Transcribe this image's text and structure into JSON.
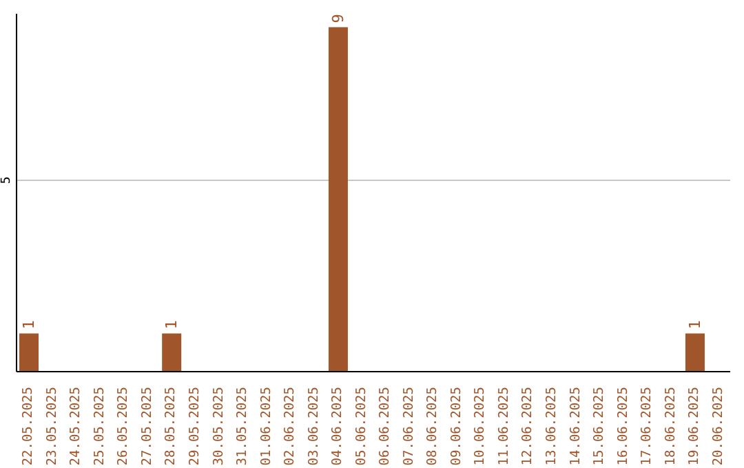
{
  "chart_data": {
    "type": "bar",
    "categories": [
      "22.05.2025",
      "23.05.2025",
      "24.05.2025",
      "25.05.2025",
      "26.05.2025",
      "27.05.2025",
      "28.05.2025",
      "29.05.2025",
      "30.05.2025",
      "31.05.2025",
      "01.06.2025",
      "02.06.2025",
      "03.06.2025",
      "04.06.2025",
      "05.06.2025",
      "06.06.2025",
      "07.06.2025",
      "08.06.2025",
      "09.06.2025",
      "10.06.2025",
      "11.06.2025",
      "12.06.2025",
      "13.06.2025",
      "14.06.2025",
      "15.06.2025",
      "16.06.2025",
      "17.06.2025",
      "18.06.2025",
      "19.06.2025",
      "20.06.2025"
    ],
    "values": [
      1,
      0,
      0,
      0,
      0,
      0,
      1,
      0,
      0,
      0,
      0,
      0,
      0,
      9,
      0,
      0,
      0,
      0,
      0,
      0,
      0,
      0,
      0,
      0,
      0,
      0,
      0,
      0,
      1,
      0
    ],
    "color": "#a0562a",
    "value_labels": [
      "1",
      null,
      null,
      null,
      null,
      null,
      "1",
      null,
      null,
      null,
      null,
      null,
      null,
      "9",
      null,
      null,
      null,
      null,
      null,
      null,
      null,
      null,
      null,
      null,
      null,
      null,
      null,
      null,
      "1",
      null
    ],
    "ylim": [
      0,
      9.35
    ],
    "yticks": [
      5
    ],
    "grid": "y"
  }
}
